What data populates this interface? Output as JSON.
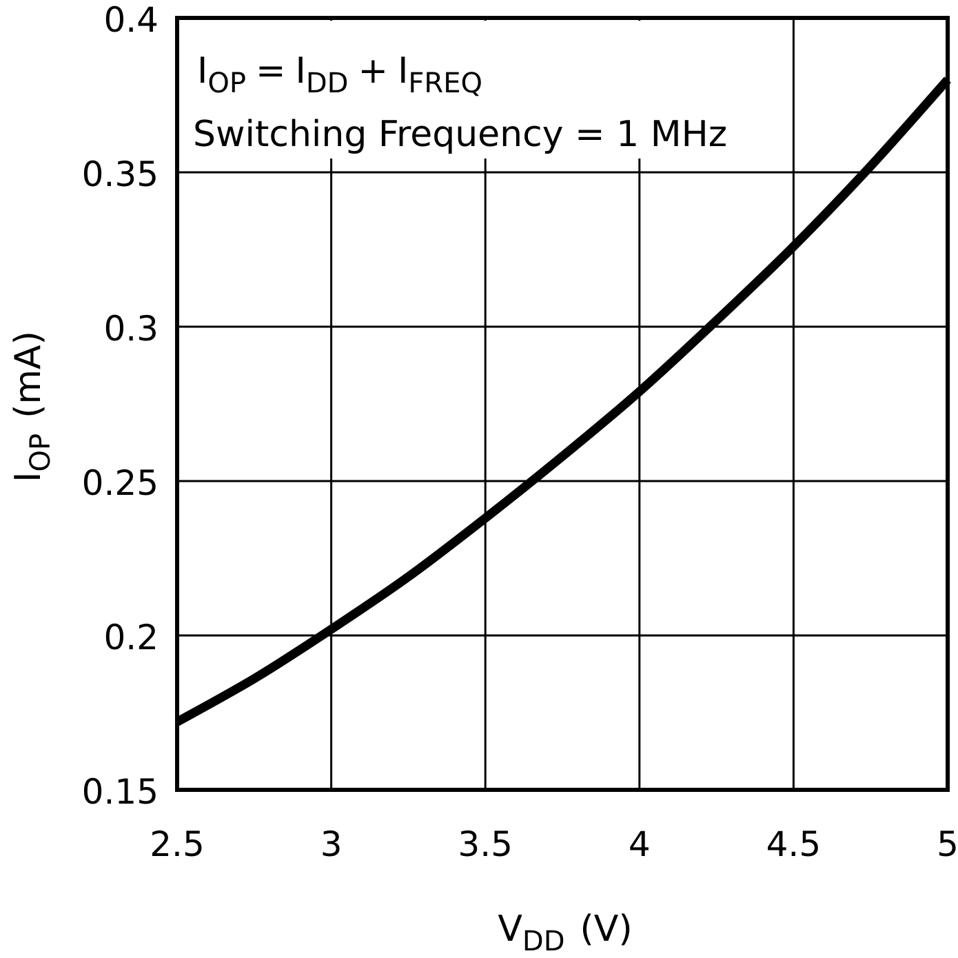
{
  "chart_data": {
    "type": "line",
    "title": "",
    "xlabel": {
      "main": "V",
      "sub": "DD",
      "unit": "(V)"
    },
    "ylabel": {
      "main": "I",
      "sub": "OP",
      "unit": "(mA)"
    },
    "xlim": [
      2.5,
      5
    ],
    "ylim": [
      0.15,
      0.4
    ],
    "xticks": [
      2.5,
      3,
      3.5,
      4,
      4.5,
      5
    ],
    "xtick_labels": [
      "2.5",
      "3",
      "3.5",
      "4",
      "4.5",
      "5"
    ],
    "yticks": [
      0.15,
      0.2,
      0.25,
      0.3,
      0.35,
      0.4
    ],
    "ytick_labels": [
      "0.15",
      "0.2",
      "0.25",
      "0.3",
      "0.35",
      "0.4"
    ],
    "grid": true,
    "annotations": {
      "equation": {
        "lhs_main": "I",
        "lhs_sub": "OP",
        "eq": "=",
        "t1_main": "I",
        "t1_sub": "DD",
        "plus": "+",
        "t2_main": "I",
        "t2_sub": "FREQ"
      },
      "condition": "Switching Frequency = 1 MHz"
    },
    "series": [
      {
        "x": [
          2.5,
          2.75,
          3.0,
          3.25,
          3.5,
          3.75,
          4.0,
          4.25,
          4.5,
          4.75,
          5.0
        ],
        "y": [
          0.172,
          0.186,
          0.202,
          0.219,
          0.238,
          0.258,
          0.279,
          0.302,
          0.326,
          0.352,
          0.38
        ],
        "color": "#000000"
      }
    ]
  }
}
